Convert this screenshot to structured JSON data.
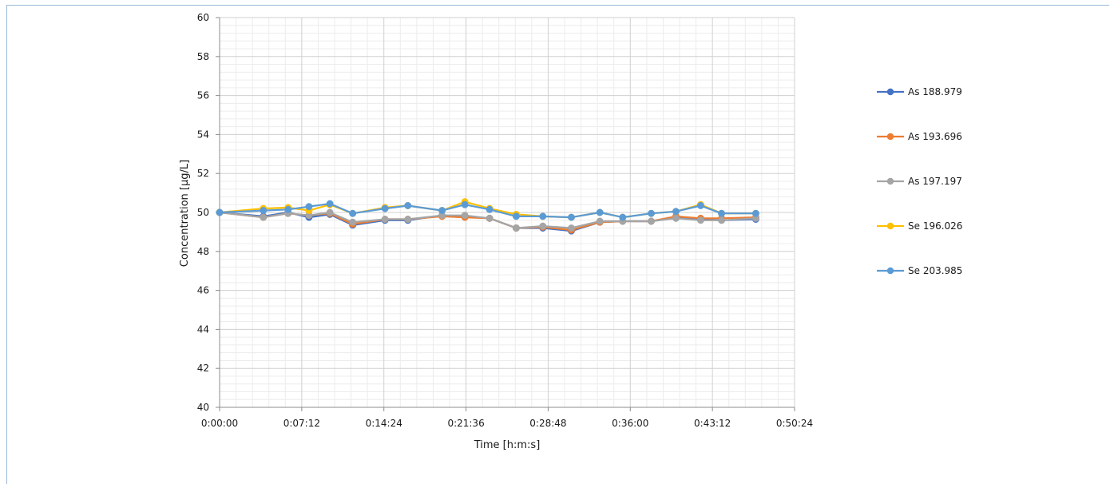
{
  "chart_data": {
    "type": "line",
    "xlabel": "Time [h:m:s]",
    "ylabel": "Concentration [µg/L]",
    "x_tick_labels": [
      "0:00:00",
      "0:07:12",
      "0:14:24",
      "0:21:36",
      "0:28:48",
      "0:36:00",
      "0:43:12",
      "0:50:24"
    ],
    "xlim": [
      "0:00:00",
      "0:50:24"
    ],
    "ylim": [
      40,
      60
    ],
    "y_tick_labels": [
      "40",
      "42",
      "44",
      "46",
      "48",
      "50",
      "52",
      "54",
      "56",
      "58",
      "60"
    ],
    "grid": true,
    "minor_grid": true,
    "legend_position": "right",
    "x": [
      "0:00:00",
      "0:03:50",
      "0:06:00",
      "0:07:50",
      "0:09:40",
      "0:11:40",
      "0:14:30",
      "0:16:30",
      "0:19:30",
      "0:21:30",
      "0:23:40",
      "0:26:00",
      "0:28:20",
      "0:30:50",
      "0:33:20",
      "0:35:20",
      "0:37:50",
      "0:40:00",
      "0:42:10",
      "0:44:00",
      "0:47:00"
    ],
    "series": [
      {
        "name": "As 188.979",
        "color": "#4472C4",
        "values": [
          50.0,
          49.8,
          50.0,
          49.75,
          49.9,
          49.35,
          49.6,
          49.6,
          49.85,
          49.8,
          49.7,
          49.2,
          49.2,
          49.05,
          49.5,
          49.55,
          49.55,
          49.75,
          49.65,
          49.6,
          49.65
        ]
      },
      {
        "name": "As 193.696",
        "color": "#ED7D31",
        "values": [
          50.0,
          49.75,
          49.95,
          49.85,
          49.95,
          49.4,
          49.65,
          49.65,
          49.8,
          49.75,
          49.7,
          49.2,
          49.25,
          49.1,
          49.5,
          49.55,
          49.55,
          49.8,
          49.7,
          49.7,
          49.75
        ]
      },
      {
        "name": "As 197.197",
        "color": "#A5A5A5",
        "values": [
          50.0,
          49.75,
          49.95,
          49.85,
          50.0,
          49.5,
          49.65,
          49.65,
          49.85,
          49.85,
          49.7,
          49.2,
          49.3,
          49.2,
          49.55,
          49.55,
          49.55,
          49.7,
          49.6,
          49.6,
          49.7
        ]
      },
      {
        "name": "Se 196.026",
        "color": "#FFC000",
        "values": [
          50.0,
          50.2,
          50.25,
          50.1,
          50.4,
          49.95,
          50.25,
          50.35,
          50.1,
          50.55,
          50.2,
          49.9,
          49.8,
          49.75,
          50.0,
          49.75,
          49.95,
          50.05,
          50.4,
          49.95,
          49.95
        ]
      },
      {
        "name": "Se 203.985",
        "color": "#5B9BD5",
        "values": [
          50.0,
          50.1,
          50.15,
          50.3,
          50.45,
          49.95,
          50.2,
          50.35,
          50.1,
          50.4,
          50.15,
          49.8,
          49.8,
          49.75,
          50.0,
          49.75,
          49.95,
          50.05,
          50.35,
          49.95,
          49.95
        ]
      }
    ]
  }
}
